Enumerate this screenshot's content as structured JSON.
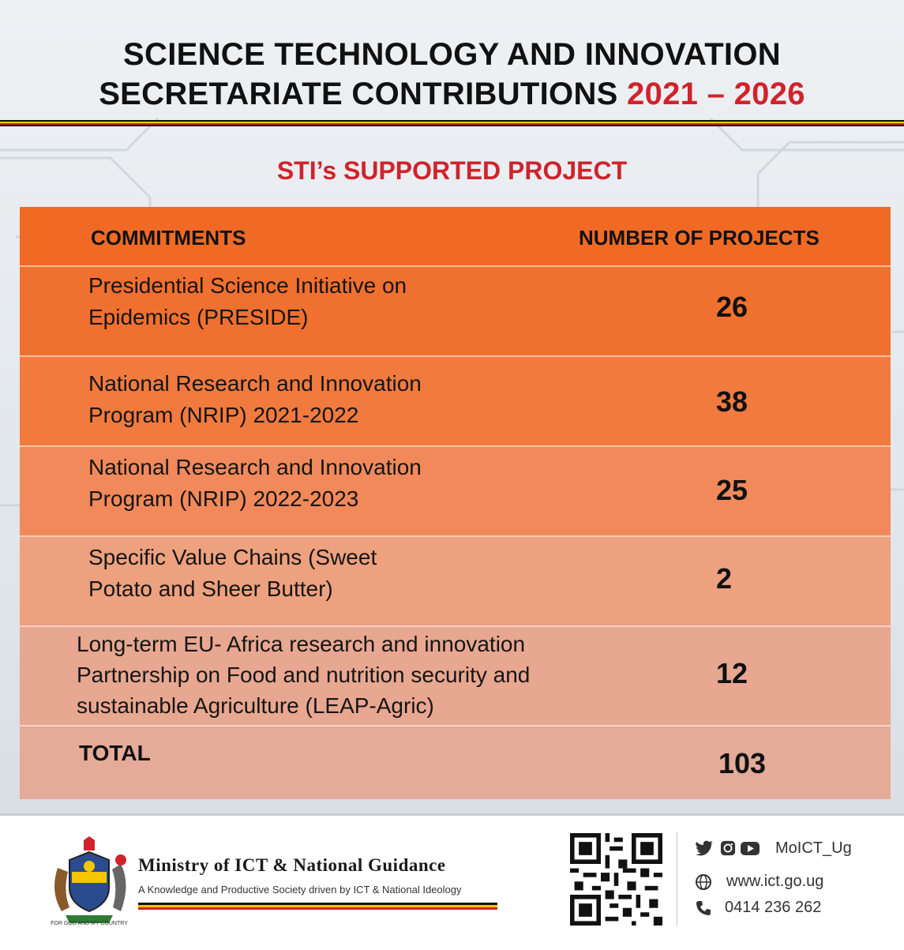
{
  "header": {
    "title_line1": "SCIENCE TECHNOLOGY AND INNOVATION",
    "title_line2": "SECRETARIATE CONTRIBUTIONS",
    "title_years": "2021 – 2026",
    "subtitle": "STI’s SUPPORTED PROJECT"
  },
  "table": {
    "col_commitments": "COMMITMENTS",
    "col_projects": "NUMBER OF PROJECTS",
    "rows": [
      {
        "line1": "Presidential Science Initiative on",
        "line2": "Epidemics (PRESIDE)",
        "line3": "",
        "value": "26"
      },
      {
        "line1": "National Research and Innovation",
        "line2": "Program (NRIP) 2021-2022",
        "line3": "",
        "value": "38"
      },
      {
        "line1": "National Research and Innovation",
        "line2": "Program (NRIP) 2022-2023",
        "line3": "",
        "value": "25"
      },
      {
        "line1": "Specific Value Chains (Sweet",
        "line2": "Potato and Sheer Butter)",
        "line3": "",
        "value": "2"
      },
      {
        "line1": "Long-term EU- Africa research and innovation",
        "line2": "Partnership on Food and nutrition security and",
        "line3": "sustainable Agriculture (LEAP-Agric)",
        "value": "12"
      }
    ],
    "total_label": "TOTAL",
    "total_value": "103"
  },
  "footer": {
    "ministry": "Ministry of ICT & National Guidance",
    "tagline": "A Knowledge and Productive Society driven by ICT & National Ideology",
    "coat_motto": "FOR GOD AND MY COUNTRY",
    "social_handle": "MoICT_Ug",
    "website": "www.ict.go.ug",
    "phone": "0414 236 262"
  },
  "colors": {
    "accent_red": "#d0232b",
    "header_orange": "#f06a26",
    "flag_black": "#111111",
    "flag_yellow": "#f7c600",
    "flag_red": "#d0232b"
  },
  "icons": [
    "twitter-icon",
    "instagram-icon",
    "youtube-icon",
    "globe-icon",
    "phone-icon",
    "qr-code-icon",
    "coat-of-arms-icon"
  ]
}
